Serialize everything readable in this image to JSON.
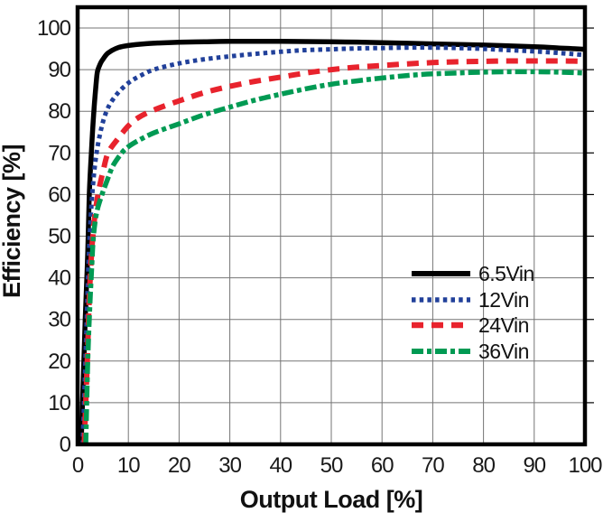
{
  "chart_data": {
    "type": "line",
    "title": "",
    "xlabel": "Output Load [%]",
    "ylabel": "Efficiency [%]",
    "xlim": [
      0,
      100
    ],
    "ylim": [
      0,
      105
    ],
    "xticks": [
      0,
      10,
      20,
      30,
      40,
      50,
      60,
      70,
      80,
      90,
      100
    ],
    "yticks": [
      0,
      10,
      20,
      30,
      40,
      50,
      60,
      70,
      80,
      90,
      100
    ],
    "grid": true,
    "legend_position": "inside-right-middle",
    "series": [
      {
        "name": "6.5Vin",
        "color": "#000000",
        "line_style": "solid",
        "points": [
          [
            0.7,
            0
          ],
          [
            1.5,
            30
          ],
          [
            2,
            46
          ],
          [
            2.3,
            60
          ],
          [
            2.7,
            70
          ],
          [
            3.2,
            80
          ],
          [
            3.6,
            86
          ],
          [
            3.9,
            89.5
          ],
          [
            4.5,
            91.5
          ],
          [
            5,
            92.5
          ],
          [
            6,
            94
          ],
          [
            8,
            95.3
          ],
          [
            10,
            95.8
          ],
          [
            13,
            96.2
          ],
          [
            16,
            96.4
          ],
          [
            20,
            96.6
          ],
          [
            25,
            96.7
          ],
          [
            30,
            96.8
          ],
          [
            40,
            96.8
          ],
          [
            50,
            96.7
          ],
          [
            60,
            96.5
          ],
          [
            70,
            96.2
          ],
          [
            80,
            95.9
          ],
          [
            90,
            95.5
          ],
          [
            95,
            95.2
          ],
          [
            100,
            94.9
          ]
        ]
      },
      {
        "name": "12Vin",
        "color": "#21409a",
        "line_style": "dotted",
        "points": [
          [
            1,
            0
          ],
          [
            1.8,
            30
          ],
          [
            2.2,
            45
          ],
          [
            2.6,
            55
          ],
          [
            3,
            62
          ],
          [
            3.5,
            68
          ],
          [
            4,
            72
          ],
          [
            4.5,
            75
          ],
          [
            5,
            77.5
          ],
          [
            5.7,
            80
          ],
          [
            6.5,
            82
          ],
          [
            8,
            84.5
          ],
          [
            10,
            86.8
          ],
          [
            12,
            88.3
          ],
          [
            15,
            90
          ],
          [
            20,
            91.5
          ],
          [
            25,
            92.5
          ],
          [
            30,
            93.2
          ],
          [
            35,
            93.8
          ],
          [
            40,
            94.3
          ],
          [
            45,
            94.7
          ],
          [
            50,
            94.9
          ],
          [
            55,
            95.1
          ],
          [
            60,
            95.2
          ],
          [
            65,
            95.3
          ],
          [
            70,
            95.3
          ],
          [
            75,
            95.2
          ],
          [
            80,
            95
          ],
          [
            85,
            94.7
          ],
          [
            90,
            94.4
          ],
          [
            95,
            94
          ],
          [
            100,
            93.5
          ]
        ]
      },
      {
        "name": "24Vin",
        "color": "#e8232d",
        "line_style": "dashed",
        "points": [
          [
            1.3,
            0
          ],
          [
            1.9,
            20
          ],
          [
            2.3,
            35
          ],
          [
            2.7,
            45
          ],
          [
            3,
            50
          ],
          [
            3.4,
            55
          ],
          [
            4,
            60
          ],
          [
            4.6,
            63.5
          ],
          [
            5,
            65.5
          ],
          [
            6,
            70
          ],
          [
            8,
            73.5
          ],
          [
            10,
            76.5
          ],
          [
            12,
            78.5
          ],
          [
            15,
            80.3
          ],
          [
            20,
            82.5
          ],
          [
            25,
            84.5
          ],
          [
            30,
            86
          ],
          [
            35,
            87.2
          ],
          [
            40,
            88.2
          ],
          [
            45,
            89.2
          ],
          [
            50,
            90
          ],
          [
            55,
            90.6
          ],
          [
            60,
            91
          ],
          [
            65,
            91.4
          ],
          [
            70,
            91.7
          ],
          [
            75,
            91.9
          ],
          [
            80,
            92
          ],
          [
            85,
            92.1
          ],
          [
            90,
            92.1
          ],
          [
            95,
            92.1
          ],
          [
            100,
            92
          ]
        ]
      },
      {
        "name": "36Vin",
        "color": "#009a53",
        "line_style": "dashdot",
        "points": [
          [
            1.6,
            0
          ],
          [
            2,
            20
          ],
          [
            2.4,
            33
          ],
          [
            2.8,
            43
          ],
          [
            3,
            48
          ],
          [
            3.3,
            52
          ],
          [
            3.8,
            56
          ],
          [
            4.8,
            60
          ],
          [
            6,
            64
          ],
          [
            7,
            67
          ],
          [
            8.7,
            70
          ],
          [
            10,
            71.5
          ],
          [
            12,
            73
          ],
          [
            15,
            74.8
          ],
          [
            20,
            77
          ],
          [
            25,
            79.2
          ],
          [
            30,
            81
          ],
          [
            35,
            82.7
          ],
          [
            40,
            84.1
          ],
          [
            45,
            85.4
          ],
          [
            50,
            86.5
          ],
          [
            55,
            87.3
          ],
          [
            60,
            88
          ],
          [
            65,
            88.6
          ],
          [
            70,
            89
          ],
          [
            75,
            89.2
          ],
          [
            80,
            89.4
          ],
          [
            85,
            89.5
          ],
          [
            90,
            89.5
          ],
          [
            95,
            89.4
          ],
          [
            100,
            89.2
          ]
        ]
      }
    ]
  },
  "style": {
    "background": "#ffffff",
    "grid_color": "#757575",
    "frame_color": "#000000",
    "text_color": "#1a1a1a"
  }
}
